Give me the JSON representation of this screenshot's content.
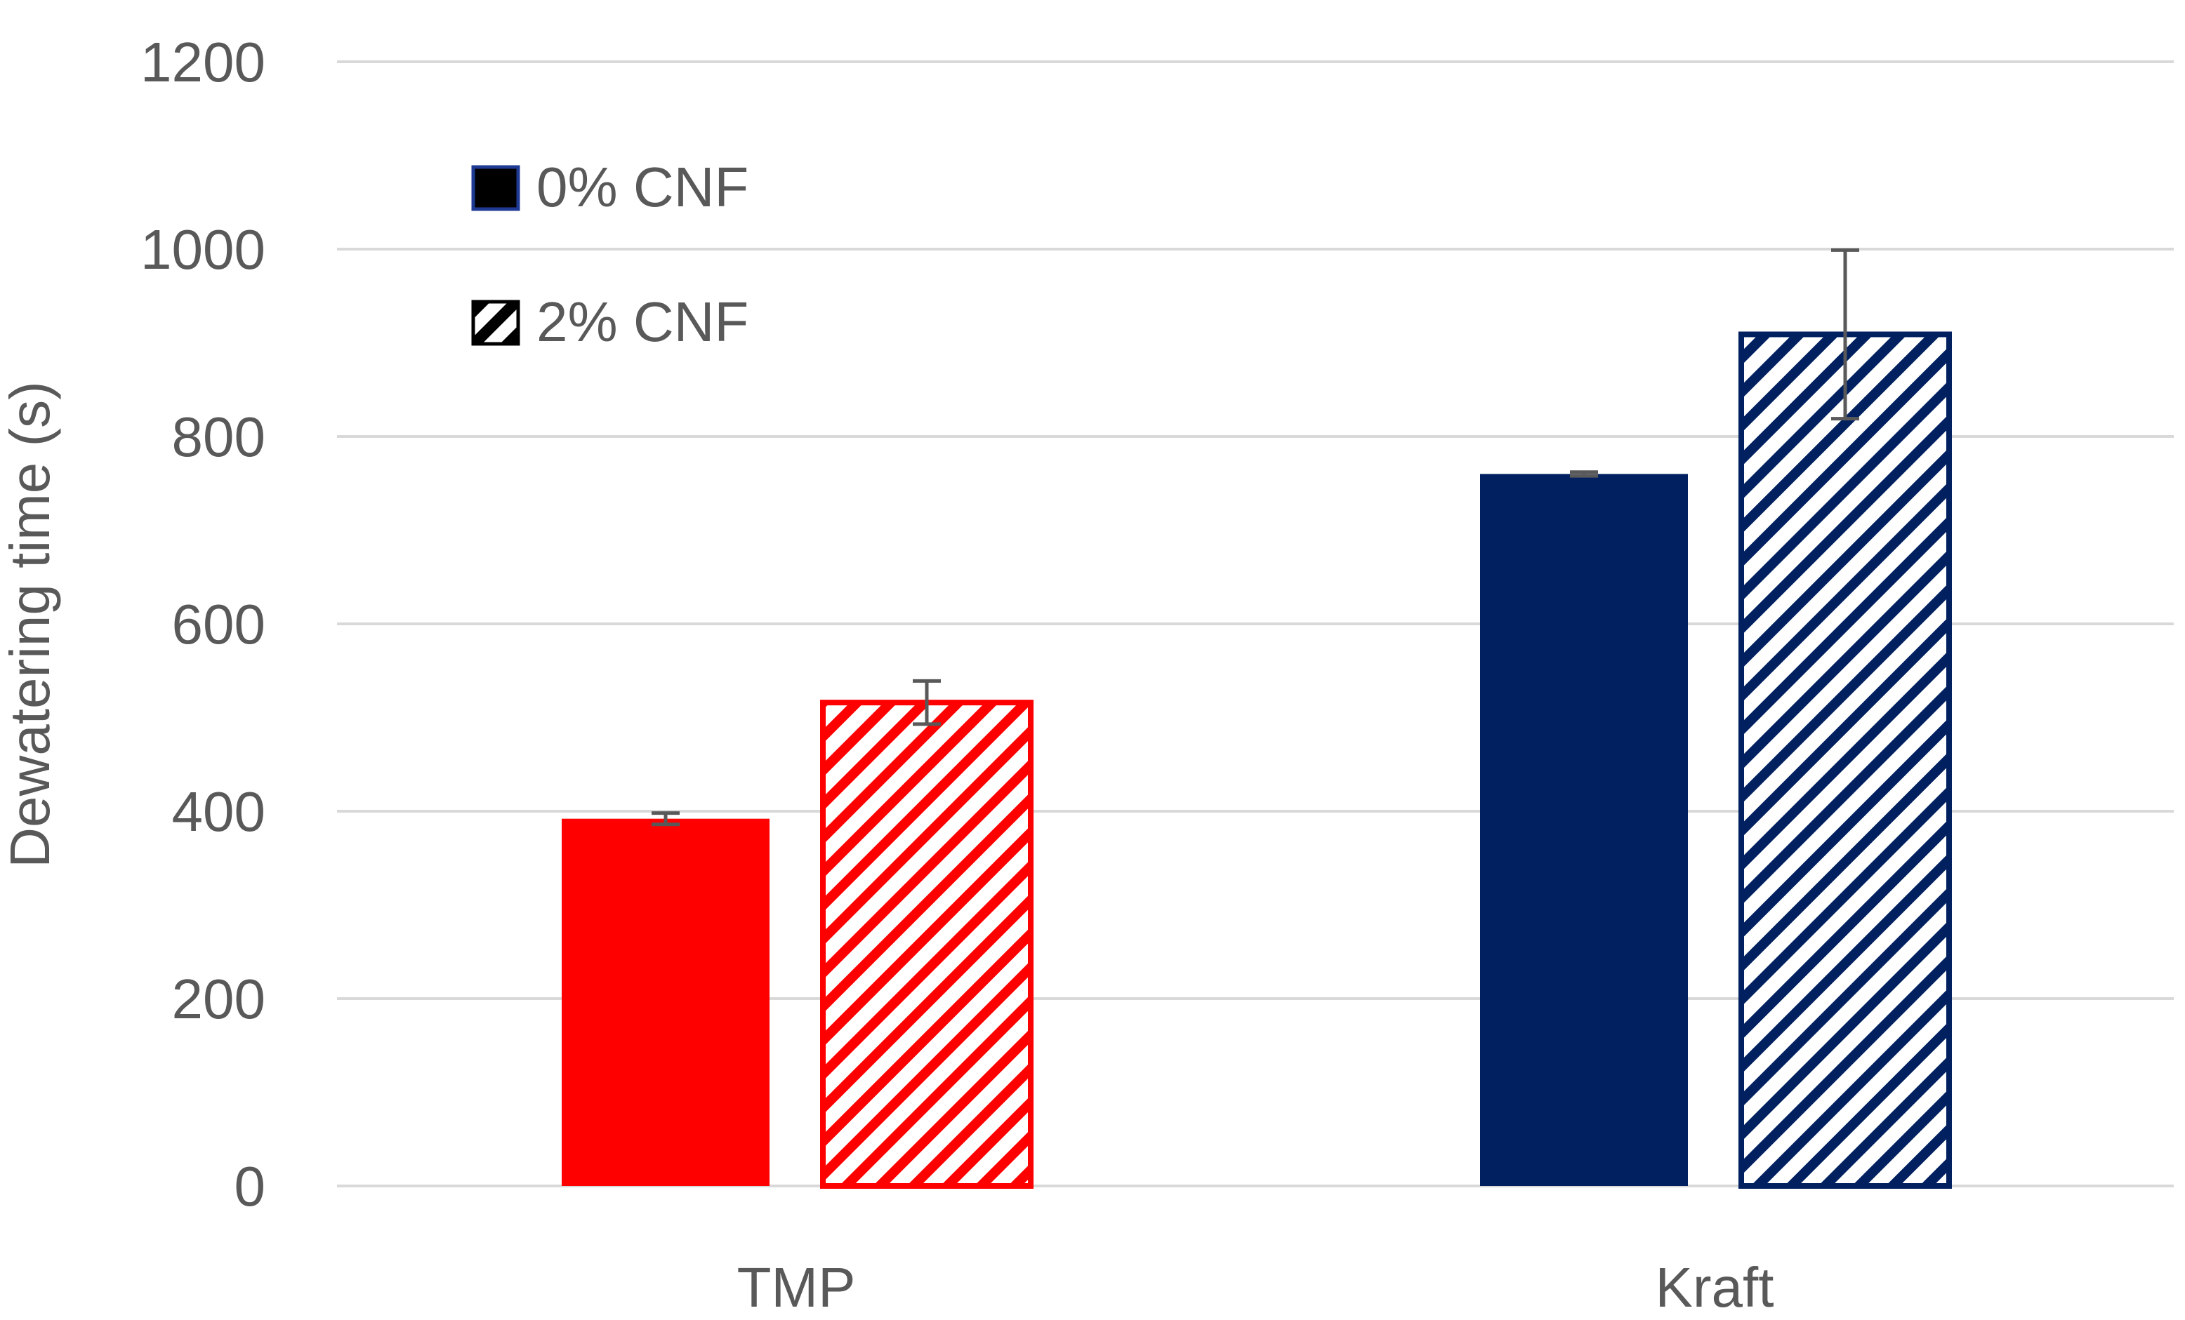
{
  "chart_data": {
    "type": "bar",
    "categories": [
      "TMP",
      "Kraft"
    ],
    "category_colors": {
      "TMP": "#ff0000",
      "Kraft": "#002060"
    },
    "series": [
      {
        "name": "0% CNF",
        "fill": "solid",
        "values": [
          392,
          760
        ],
        "errors": [
          6,
          2
        ]
      },
      {
        "name": "2% CNF",
        "fill": "hatched",
        "values": [
          516,
          909
        ],
        "errors": [
          23,
          90
        ]
      }
    ],
    "title": "",
    "xlabel": "",
    "ylabel": "Dewatering time (s)",
    "ylim": [
      0,
      1200
    ],
    "yticks": [
      "0",
      "200",
      "400",
      "600",
      "800",
      "1000",
      "1200"
    ],
    "grid": true,
    "legend_position": "top-left",
    "colors": {
      "grid": "#d9d9d9",
      "text": "#595959",
      "error_bar": "#595959"
    }
  }
}
